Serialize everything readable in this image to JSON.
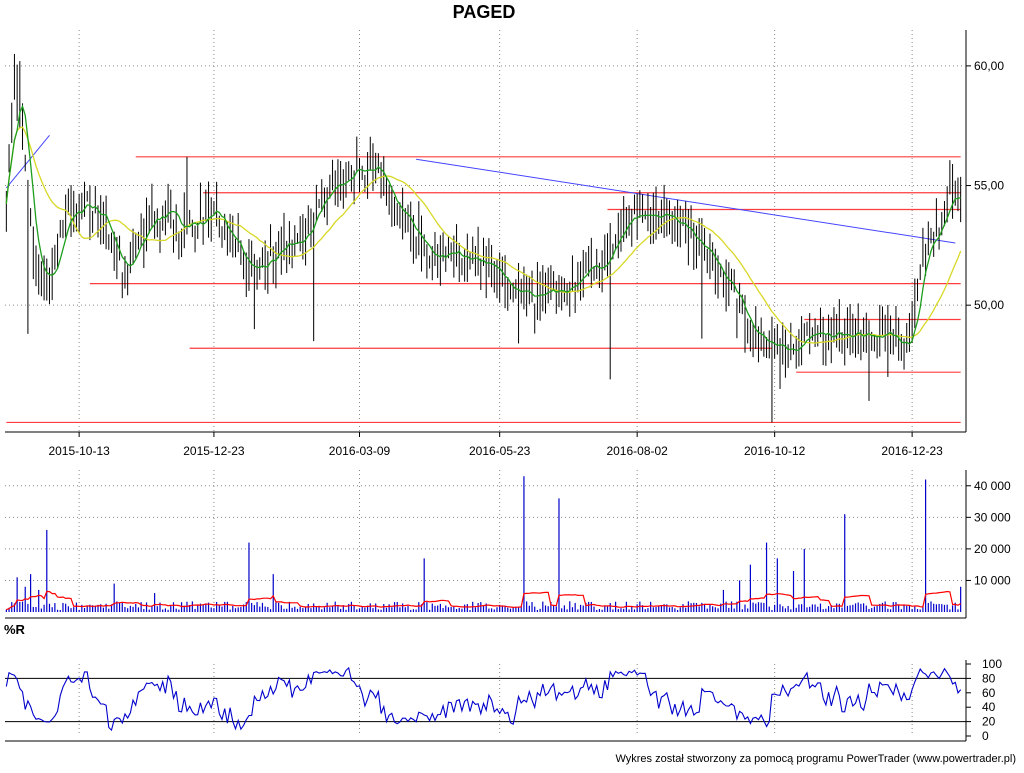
{
  "title": "PAGED",
  "footer": "Wykres został stworzony za pomocą programu PowerTrader (www.powertrader.pl)",
  "x_axis": {
    "tick_labels": [
      "2015-10-13",
      "2015-12-23",
      "2016-03-09",
      "2016-05-23",
      "2016-08-02",
      "2016-10-12",
      "2016-12-23"
    ],
    "tick_index": [
      27,
      77,
      131,
      183,
      234,
      285,
      336
    ]
  },
  "colors": {
    "price_bar": "#000000",
    "ma_short": "#1e9e1e",
    "ma_long": "#d8d826",
    "support_resistance": "#ff3b3b",
    "trendline": "#4444ff",
    "volume": "#0000cc",
    "volume_avg": "#ff0000",
    "williams_r": "#0000cc",
    "grid": "#888888"
  },
  "chart_data": [
    {
      "type": "bar",
      "name": "price",
      "title": "PAGED",
      "ylim": [
        44.7,
        61.5
      ],
      "y_ticks": [
        50,
        55,
        60
      ],
      "y_tick_labels": [
        "50,00",
        "55,00",
        "60,00"
      ],
      "grid": true,
      "n_sessions": 355,
      "close_anchors": [
        [
          0,
          54.5
        ],
        [
          3,
          59.2
        ],
        [
          6,
          57.6
        ],
        [
          10,
          52.0
        ],
        [
          16,
          51.3
        ],
        [
          22,
          53.8
        ],
        [
          30,
          54.2
        ],
        [
          38,
          53.0
        ],
        [
          44,
          51.3
        ],
        [
          52,
          53.3
        ],
        [
          60,
          54.1
        ],
        [
          64,
          53.1
        ],
        [
          78,
          53.8
        ],
        [
          90,
          51.5
        ],
        [
          108,
          52.7
        ],
        [
          120,
          54.8
        ],
        [
          130,
          55.5
        ],
        [
          138,
          55.6
        ],
        [
          148,
          53.6
        ],
        [
          158,
          52.2
        ],
        [
          170,
          51.9
        ],
        [
          178,
          51.8
        ],
        [
          188,
          50.6
        ],
        [
          196,
          50.3
        ],
        [
          205,
          50.8
        ],
        [
          212,
          51.2
        ],
        [
          221,
          51.7
        ],
        [
          226,
          52.8
        ],
        [
          232,
          53.8
        ],
        [
          238,
          54.0
        ],
        [
          248,
          53.6
        ],
        [
          256,
          52.8
        ],
        [
          266,
          51.2
        ],
        [
          278,
          48.7
        ],
        [
          290,
          48.0
        ],
        [
          300,
          48.8
        ],
        [
          314,
          48.7
        ],
        [
          326,
          48.6
        ],
        [
          334,
          48.3
        ],
        [
          336,
          48.8
        ],
        [
          340,
          52.2
        ],
        [
          346,
          53.4
        ],
        [
          350,
          55.0
        ],
        [
          354,
          54.2
        ]
      ],
      "moving_averages": [
        "ma_short",
        "ma_long"
      ],
      "horizontal_levels": [
        {
          "value": 56.2,
          "from": 48,
          "to": 355
        },
        {
          "value": 54.7,
          "from": 73,
          "to": 355
        },
        {
          "value": 54.0,
          "from": 223,
          "to": 355
        },
        {
          "value": 50.9,
          "from": 31,
          "to": 355
        },
        {
          "value": 49.4,
          "from": 296,
          "to": 355
        },
        {
          "value": 48.2,
          "from": 68,
          "to": 285
        },
        {
          "value": 47.2,
          "from": 293,
          "to": 355
        },
        {
          "value": 45.1,
          "from": 0,
          "to": 355
        }
      ],
      "trendlines": [
        {
          "x1": 0,
          "y1": 54.9,
          "x2": 16,
          "y2": 57.1
        },
        {
          "x1": 152,
          "y1": 56.1,
          "x2": 352,
          "y2": 52.6
        }
      ]
    },
    {
      "type": "bar",
      "name": "volume",
      "ylim": [
        0,
        45000
      ],
      "y_ticks": [
        10000,
        20000,
        30000,
        40000
      ],
      "y_tick_labels": [
        "10 000",
        "20 000",
        "30 000",
        "40 000"
      ],
      "spikes": [
        [
          4,
          11000
        ],
        [
          7,
          8000
        ],
        [
          9,
          12000
        ],
        [
          12,
          7000
        ],
        [
          15,
          26000
        ],
        [
          40,
          9000
        ],
        [
          55,
          6000
        ],
        [
          90,
          22000
        ],
        [
          99,
          12000
        ],
        [
          155,
          17000
        ],
        [
          192,
          43000
        ],
        [
          205,
          36000
        ],
        [
          266,
          7000
        ],
        [
          272,
          10000
        ],
        [
          276,
          15000
        ],
        [
          282,
          22000
        ],
        [
          286,
          17000
        ],
        [
          292,
          13000
        ],
        [
          296,
          20000
        ],
        [
          311,
          31000
        ],
        [
          341,
          42000
        ],
        [
          354,
          8000
        ]
      ],
      "baseline_volume": 2000,
      "average_line": true
    },
    {
      "type": "line",
      "name": "%R",
      "title": "%R",
      "ylim": [
        0,
        100
      ],
      "y_ticks": [
        0,
        20,
        40,
        60,
        80,
        100
      ],
      "y_tick_labels": [
        "0",
        "20",
        "40",
        "60",
        "80",
        "100"
      ],
      "reference_levels": [
        20,
        80
      ],
      "lookback": 14
    }
  ]
}
